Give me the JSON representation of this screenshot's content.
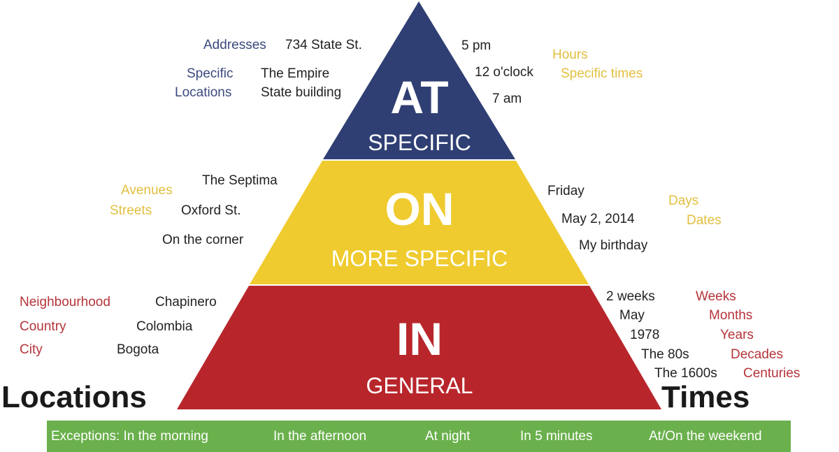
{
  "colors": {
    "at": "#2f3f73",
    "on": "#efcb2f",
    "in": "#b8262b",
    "exceptions_bar": "#6ab04c"
  },
  "tiers": {
    "at": {
      "title": "AT",
      "subtitle": "SPECIFIC"
    },
    "on": {
      "title": "ON",
      "subtitle": "MORE SPECIFIC"
    },
    "in": {
      "title": "IN",
      "subtitle": "GENERAL"
    }
  },
  "sides": {
    "left": "Locations",
    "right": "Times"
  },
  "at_locations": {
    "categories": [
      "Addresses",
      "Specific",
      "Locations"
    ],
    "examples": [
      "734 State St.",
      "The Empire",
      "State building"
    ]
  },
  "at_times": {
    "examples": [
      "5 pm",
      "12 o'clock",
      "7 am"
    ],
    "categories": [
      "Hours",
      "Specific times"
    ]
  },
  "on_locations": {
    "categories": [
      "Avenues",
      "Streets"
    ],
    "examples": [
      "The Septima",
      "Oxford St.",
      "On the corner"
    ]
  },
  "on_times": {
    "examples": [
      "Friday",
      "May 2, 2014",
      "My birthday"
    ],
    "categories": [
      "Days",
      "Dates"
    ]
  },
  "in_locations": {
    "categories": [
      "Neighbourhood",
      "Country",
      "City"
    ],
    "examples": [
      "Chapinero",
      "Colombia",
      "Bogota"
    ]
  },
  "in_times": {
    "examples": [
      "2 weeks",
      "May",
      "1978",
      "The 80s",
      "The 1600s"
    ],
    "categories": [
      "Weeks",
      "Months",
      "Years",
      "Decades",
      "Centuries"
    ]
  },
  "exceptions": [
    "Exceptions: In the morning",
    "In the afternoon",
    "At night",
    "In 5 minutes",
    "At/On the weekend"
  ]
}
